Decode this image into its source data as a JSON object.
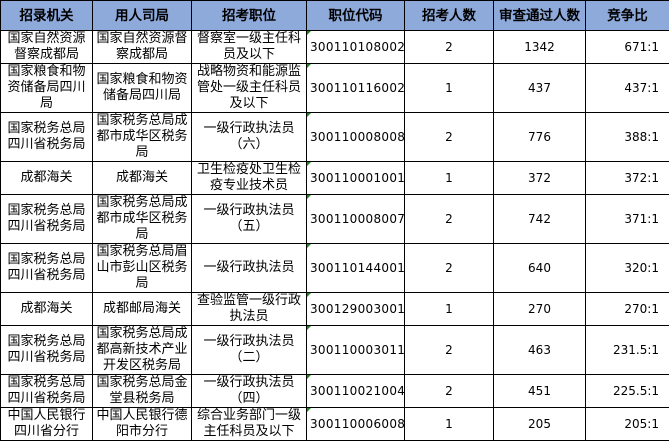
{
  "headers": [
    "招录机关",
    "用人司局",
    "招考职位",
    "职位代码",
    "招考人数",
    "审查通过人数",
    "竞争比"
  ],
  "rows": [
    {
      "agency": "国家自然资源督察成都局",
      "dept": "国家自然资源督察成都局",
      "position": "督察室一级主任科员及以下",
      "code": "300110108002",
      "hires": "2",
      "passed": "1342",
      "ratio": "671:1"
    },
    {
      "agency": "国家粮食和物资储备局四川局",
      "dept": "国家粮食和物资储备局四川局",
      "position": "战略物资和能源监管处一级主任科员及以下",
      "code": "300110116002",
      "hires": "1",
      "passed": "437",
      "ratio": "437:1"
    },
    {
      "agency": "国家税务总局四川省税务局",
      "dept": "国家税务总局成都市成华区税务局",
      "position": "一级行政执法员（六）",
      "code": "300110008008",
      "hires": "2",
      "passed": "776",
      "ratio": "388:1"
    },
    {
      "agency": "成都海关",
      "dept": "成都海关",
      "position": "卫生检疫处卫生检疫专业技术员",
      "code": "300110001001",
      "hires": "1",
      "passed": "372",
      "ratio": "372:1"
    },
    {
      "agency": "国家税务总局四川省税务局",
      "dept": "国家税务总局成都市成华区税务局",
      "position": "一级行政执法员（五）",
      "code": "300110008007",
      "hires": "2",
      "passed": "742",
      "ratio": "371:1"
    },
    {
      "agency": "国家税务总局四川省税务局",
      "dept": "国家税务总局眉山市彭山区税务局",
      "position": "一级行政执法员",
      "code": "300110144001",
      "hires": "2",
      "passed": "640",
      "ratio": "320:1"
    },
    {
      "agency": "成都海关",
      "dept": "成都邮局海关",
      "position": "查验监管一级行政执法员",
      "code": "300129003001",
      "hires": "1",
      "passed": "270",
      "ratio": "270:1"
    },
    {
      "agency": "国家税务总局四川省税务局",
      "dept": "国家税务总局成都高新技术产业开发区税务局",
      "position": "一级行政执法员（二）",
      "code": "300110003011",
      "hires": "2",
      "passed": "463",
      "ratio": "231.5:1"
    },
    {
      "agency": "国家税务总局四川省税务局",
      "dept": "国家税务总局金堂县税务局",
      "position": "一级行政执法员（四）",
      "code": "300110021004",
      "hires": "2",
      "passed": "451",
      "ratio": "225.5:1"
    },
    {
      "agency": "中国人民银行四川省分行",
      "dept": "中国人民银行德阳市分行",
      "position": "综合业务部门一级主任科员及以下",
      "code": "300110006008",
      "hires": "1",
      "passed": "205",
      "ratio": "205:1"
    }
  ],
  "colors": {
    "header_bg": "#8eaadb"
  }
}
